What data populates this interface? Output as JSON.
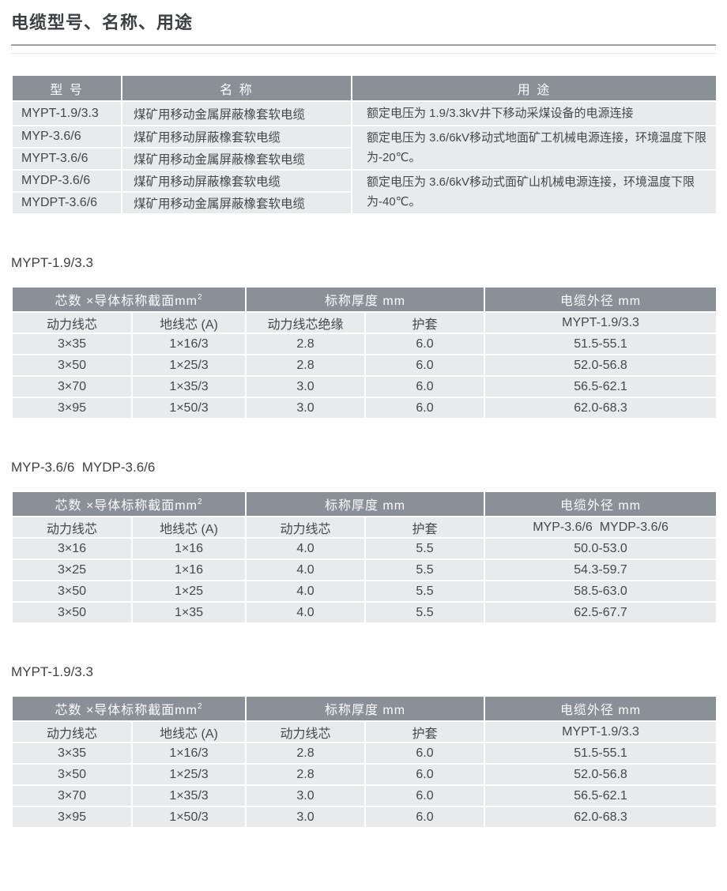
{
  "page": {
    "title": "电缆型号、名称、用途"
  },
  "colors": {
    "header_bg": "#8a9097",
    "row_bg": "#e8eaec",
    "header_text": "#fbfcfd",
    "body_text": "#44474b",
    "rule": "#9da1a7"
  },
  "type_table": {
    "headers": [
      "型 号",
      "名 称",
      "用 途"
    ],
    "rows": [
      {
        "model": "MYPT-1.9/3.3",
        "name": "煤矿用移动金属屏蔽橡套软电缆"
      },
      {
        "model": "MYP-3.6/6",
        "name": "煤矿用移动屏蔽橡套软电缆"
      },
      {
        "model": "MYPT-3.6/6",
        "name": "煤矿用移动金属屏蔽橡套软电缆"
      },
      {
        "model": "MYDP-3.6/6",
        "name": "煤矿用移动屏蔽橡套软电缆"
      },
      {
        "model": "MYDPT-3.6/6",
        "name": "煤矿用移动金属屏蔽橡套软电缆"
      }
    ],
    "usages": [
      {
        "text": "额定电压为 1.9/3.3kV井下移动采煤设备的电源连接",
        "rowspan": 1
      },
      {
        "text": "额定电压为 3.6/6kV移动式地面矿工机械电源连接，环境温度下限为-20℃。",
        "rowspan": 2
      },
      {
        "text": "额定电压为 3.6/6kV移动式面矿山机械电源连接，环境温度下限为-40℃。",
        "rowspan": 2
      }
    ]
  },
  "spec_tables": [
    {
      "section_title": "MYPT-1.9/3.3",
      "group_headers": [
        {
          "text": "芯数 ×导体标称截面mm",
          "sup": "2",
          "colspan": 2
        },
        {
          "text": "标称厚度 mm",
          "colspan": 2
        },
        {
          "text": "电缆外径 mm",
          "colspan": 1
        }
      ],
      "sub_headers": [
        "动力线芯",
        "地线芯 (A)",
        "动力线芯绝缘",
        "护套",
        "MYPT-1.9/3.3"
      ],
      "rows": [
        [
          "3×35",
          "1×16/3",
          "2.8",
          "6.0",
          "51.5-55.1"
        ],
        [
          "3×50",
          "1×25/3",
          "2.8",
          "6.0",
          "52.0-56.8"
        ],
        [
          "3×70",
          "1×35/3",
          "3.0",
          "6.0",
          "56.5-62.1"
        ],
        [
          "3×95",
          "1×50/3",
          "3.0",
          "6.0",
          "62.0-68.3"
        ]
      ]
    },
    {
      "section_title": "MYP-3.6/6  MYDP-3.6/6",
      "group_headers": [
        {
          "text": "芯数 ×导体标称截面mm",
          "sup": "2",
          "colspan": 2
        },
        {
          "text": "标称厚度 mm",
          "colspan": 2
        },
        {
          "text": "电缆外径 mm",
          "colspan": 1
        }
      ],
      "sub_headers": [
        "动力线芯",
        "地线芯 (A)",
        "动力线芯",
        "护套",
        "MYP-3.6/6  MYDP-3.6/6"
      ],
      "rows": [
        [
          "3×16",
          "1×16",
          "4.0",
          "5.5",
          "50.0-53.0"
        ],
        [
          "3×25",
          "1×16",
          "4.0",
          "5.5",
          "54.3-59.7"
        ],
        [
          "3×50",
          "1×25",
          "4.0",
          "5.5",
          "58.5-63.0"
        ],
        [
          "3×50",
          "1×35",
          "4.0",
          "5.5",
          "62.5-67.7"
        ]
      ]
    },
    {
      "section_title": "MYPT-1.9/3.3",
      "group_headers": [
        {
          "text": "芯数 ×导体标称截面mm",
          "sup": "2",
          "colspan": 2
        },
        {
          "text": "标称厚度 mm",
          "colspan": 2
        },
        {
          "text": "电缆外径 mm",
          "colspan": 1
        }
      ],
      "sub_headers": [
        "动力线芯",
        "地线芯 (A)",
        "动力线芯",
        "护套",
        "MYPT-1.9/3.3"
      ],
      "rows": [
        [
          "3×35",
          "1×16/3",
          "2.8",
          "6.0",
          "51.5-55.1"
        ],
        [
          "3×50",
          "1×25/3",
          "2.8",
          "6.0",
          "52.0-56.8"
        ],
        [
          "3×70",
          "1×35/3",
          "3.0",
          "6.0",
          "56.5-62.1"
        ],
        [
          "3×95",
          "1×50/3",
          "3.0",
          "6.0",
          "62.0-68.3"
        ]
      ]
    }
  ]
}
